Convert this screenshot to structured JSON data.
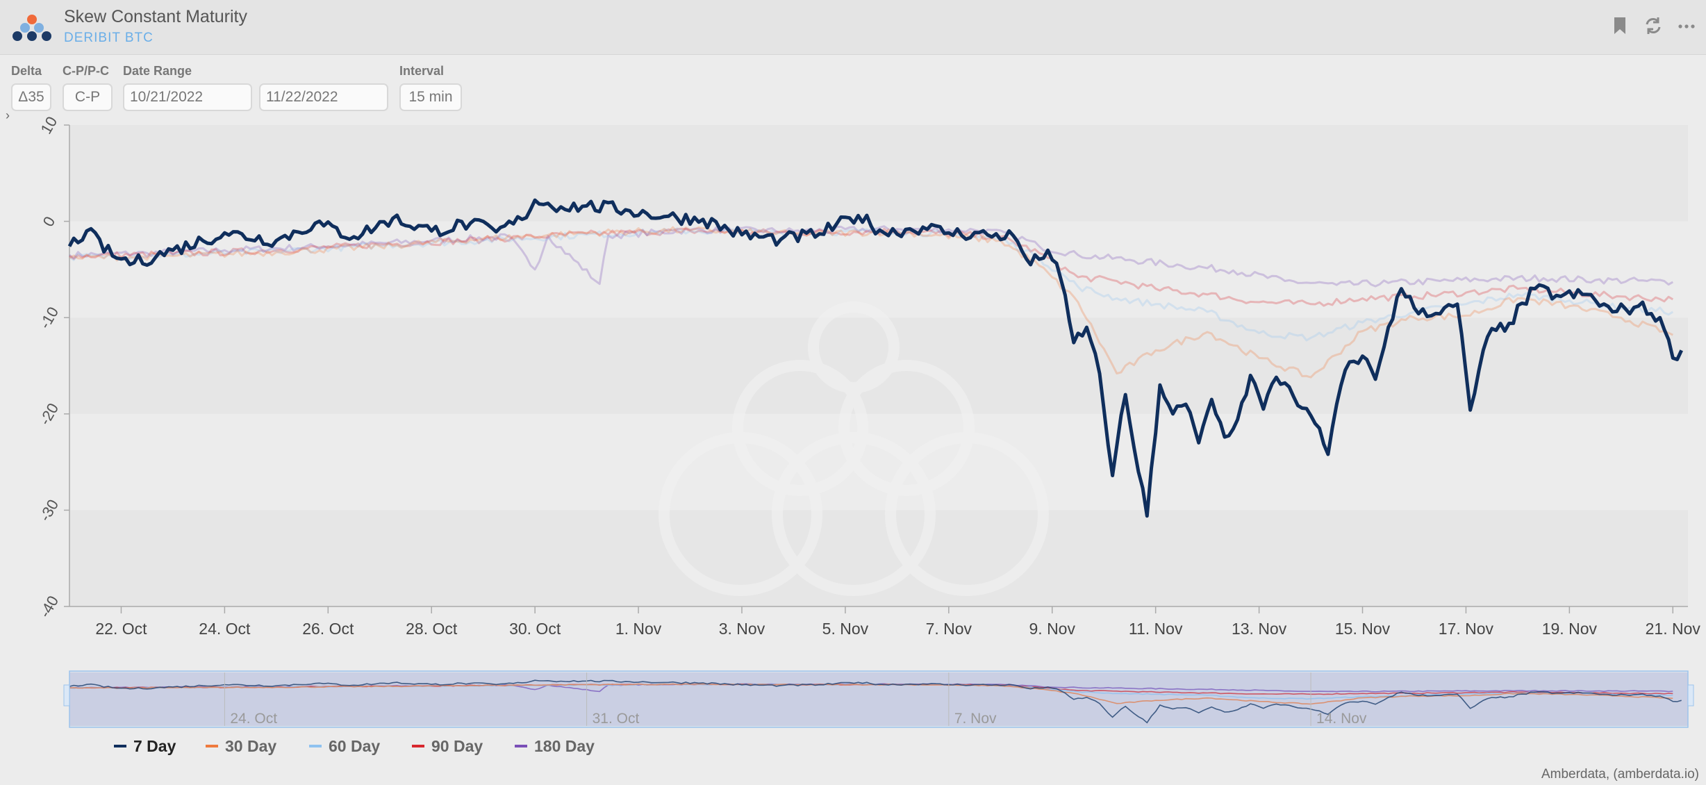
{
  "header": {
    "title": "Skew Constant Maturity",
    "subtitle": "DERIBIT BTC",
    "icons": [
      "bookmark-icon",
      "refresh-icon",
      "more-icon"
    ]
  },
  "controls": {
    "delta": {
      "label": "Delta",
      "value": "Δ35"
    },
    "cp": {
      "label": "C-P/P-C",
      "value": "C-P"
    },
    "date_range": {
      "label": "Date Range",
      "start": "10/21/2022",
      "end": "11/22/2022"
    },
    "interval": {
      "label": "Interval",
      "value": "15 min"
    }
  },
  "credit": "Amberdata, (amberdata.io)",
  "colors": {
    "7_day": "#0f2e5c",
    "30_day": "#ef7a3e",
    "60_day": "#8fc2f0",
    "90_day": "#d8282e",
    "180_day": "#7a4fb7",
    "plot_band": "#e6e6e6",
    "navigator_mask": "#d6d3e2"
  },
  "chart_data": {
    "type": "line",
    "title": "",
    "xlabel": "",
    "ylabel": "",
    "ylim": [
      -40,
      10
    ],
    "yticks": [
      10,
      0,
      -10,
      -20,
      -30,
      -40
    ],
    "xlim": [
      "2022-10-21",
      "2022-11-21"
    ],
    "xticks": [
      {
        "date": "2022-10-22",
        "label": "22. Oct"
      },
      {
        "date": "2022-10-24",
        "label": "24. Oct"
      },
      {
        "date": "2022-10-26",
        "label": "26. Oct"
      },
      {
        "date": "2022-10-28",
        "label": "28. Oct"
      },
      {
        "date": "2022-10-30",
        "label": "30. Oct"
      },
      {
        "date": "2022-11-01",
        "label": "1. Nov"
      },
      {
        "date": "2022-11-03",
        "label": "3. Nov"
      },
      {
        "date": "2022-11-05",
        "label": "5. Nov"
      },
      {
        "date": "2022-11-07",
        "label": "7. Nov"
      },
      {
        "date": "2022-11-09",
        "label": "9. Nov"
      },
      {
        "date": "2022-11-11",
        "label": "11. Nov"
      },
      {
        "date": "2022-11-13",
        "label": "13. Nov"
      },
      {
        "date": "2022-11-15",
        "label": "15. Nov"
      },
      {
        "date": "2022-11-17",
        "label": "17. Nov"
      },
      {
        "date": "2022-11-19",
        "label": "19. Nov"
      },
      {
        "date": "2022-11-21",
        "label": "21. Nov"
      }
    ],
    "navigator_ticks": [
      {
        "date": "2022-10-24",
        "label": "24. Oct"
      },
      {
        "date": "2022-10-31",
        "label": "31. Oct"
      },
      {
        "date": "2022-11-07",
        "label": "7. Nov"
      },
      {
        "date": "2022-11-14",
        "label": "14. Nov"
      }
    ],
    "legend_position": "bottom-left",
    "series": [
      {
        "name": "180 Day",
        "color": "#7a4fb7",
        "points": [
          [
            "2022-10-21T00:00",
            -3.5
          ],
          [
            "2022-10-22T12:00",
            -3.3
          ],
          [
            "2022-10-24T00:00",
            -3.0
          ],
          [
            "2022-10-26T00:00",
            -2.6
          ],
          [
            "2022-10-28T00:00",
            -2.0
          ],
          [
            "2022-10-29T12:00",
            -1.6
          ],
          [
            "2022-10-30T00:00",
            -5.0
          ],
          [
            "2022-10-30T06:00",
            -1.5
          ],
          [
            "2022-10-31T06:00",
            -6.5
          ],
          [
            "2022-10-31T10:00",
            -1.5
          ],
          [
            "2022-11-02T00:00",
            -0.9
          ],
          [
            "2022-11-04T00:00",
            -1.0
          ],
          [
            "2022-11-06T00:00",
            -0.8
          ],
          [
            "2022-11-07T12:00",
            -0.9
          ],
          [
            "2022-11-08T06:00",
            -1.4
          ],
          [
            "2022-11-08T18:00",
            -2.6
          ],
          [
            "2022-11-09T12:00",
            -3.5
          ],
          [
            "2022-11-10T12:00",
            -4.0
          ],
          [
            "2022-11-11T12:00",
            -4.6
          ],
          [
            "2022-11-12T12:00",
            -5.1
          ],
          [
            "2022-11-13T12:00",
            -6.2
          ],
          [
            "2022-11-14T12:00",
            -6.6
          ],
          [
            "2022-11-15T12:00",
            -6.4
          ],
          [
            "2022-11-16T12:00",
            -6.2
          ],
          [
            "2022-11-17T12:00",
            -6.0
          ],
          [
            "2022-11-18T12:00",
            -5.9
          ],
          [
            "2022-11-19T12:00",
            -6.1
          ],
          [
            "2022-11-20T12:00",
            -6.2
          ],
          [
            "2022-11-21T00:00",
            -6.3
          ]
        ]
      },
      {
        "name": "90 Day",
        "color": "#d8282e",
        "points": [
          [
            "2022-10-21T00:00",
            -3.6
          ],
          [
            "2022-10-23T00:00",
            -3.4
          ],
          [
            "2022-10-25T00:00",
            -3.0
          ],
          [
            "2022-10-27T00:00",
            -2.4
          ],
          [
            "2022-10-29T00:00",
            -1.9
          ],
          [
            "2022-10-31T00:00",
            -1.3
          ],
          [
            "2022-11-02T00:00",
            -1.0
          ],
          [
            "2022-11-04T00:00",
            -1.2
          ],
          [
            "2022-11-06T00:00",
            -1.0
          ],
          [
            "2022-11-08T00:00",
            -1.6
          ],
          [
            "2022-11-08T18:00",
            -3.3
          ],
          [
            "2022-11-09T12:00",
            -5.8
          ],
          [
            "2022-11-10T06:00",
            -6.2
          ],
          [
            "2022-11-11T00:00",
            -7.0
          ],
          [
            "2022-11-12T00:00",
            -7.6
          ],
          [
            "2022-11-13T00:00",
            -8.4
          ],
          [
            "2022-11-14T00:00",
            -8.6
          ],
          [
            "2022-11-15T00:00",
            -8.0
          ],
          [
            "2022-11-16T00:00",
            -7.8
          ],
          [
            "2022-11-17T00:00",
            -7.4
          ],
          [
            "2022-11-18T00:00",
            -7.0
          ],
          [
            "2022-11-19T00:00",
            -7.4
          ],
          [
            "2022-11-20T00:00",
            -7.8
          ],
          [
            "2022-11-21T00:00",
            -8.1
          ]
        ]
      },
      {
        "name": "60 Day",
        "color": "#8fc2f0",
        "points": [
          [
            "2022-10-21T00:00",
            -3.7
          ],
          [
            "2022-10-23T00:00",
            -3.5
          ],
          [
            "2022-10-25T00:00",
            -3.1
          ],
          [
            "2022-10-27T00:00",
            -2.5
          ],
          [
            "2022-10-29T00:00",
            -2.0
          ],
          [
            "2022-10-31T00:00",
            -1.4
          ],
          [
            "2022-11-02T00:00",
            -1.0
          ],
          [
            "2022-11-04T00:00",
            -1.2
          ],
          [
            "2022-11-06T00:00",
            -1.0
          ],
          [
            "2022-11-08T00:00",
            -1.8
          ],
          [
            "2022-11-08T18:00",
            -3.8
          ],
          [
            "2022-11-09T12:00",
            -6.8
          ],
          [
            "2022-11-10T06:00",
            -8.0
          ],
          [
            "2022-11-11T00:00",
            -8.6
          ],
          [
            "2022-11-12T00:00",
            -9.4
          ],
          [
            "2022-11-13T00:00",
            -11.6
          ],
          [
            "2022-11-14T00:00",
            -12.1
          ],
          [
            "2022-11-15T00:00",
            -10.5
          ],
          [
            "2022-11-16T00:00",
            -9.4
          ],
          [
            "2022-11-17T00:00",
            -8.6
          ],
          [
            "2022-11-18T00:00",
            -7.6
          ],
          [
            "2022-11-19T00:00",
            -8.2
          ],
          [
            "2022-11-20T00:00",
            -9.0
          ],
          [
            "2022-11-21T00:00",
            -9.4
          ]
        ]
      },
      {
        "name": "30 Day",
        "color": "#ef7a3e",
        "points": [
          [
            "2022-10-21T00:00",
            -3.8
          ],
          [
            "2022-10-23T00:00",
            -3.6
          ],
          [
            "2022-10-25T00:00",
            -3.2
          ],
          [
            "2022-10-27T00:00",
            -2.6
          ],
          [
            "2022-10-29T00:00",
            -1.8
          ],
          [
            "2022-10-31T00:00",
            -1.2
          ],
          [
            "2022-11-02T00:00",
            -0.9
          ],
          [
            "2022-11-04T00:00",
            -1.3
          ],
          [
            "2022-11-06T00:00",
            -1.1
          ],
          [
            "2022-11-08T00:00",
            -2.0
          ],
          [
            "2022-11-08T18:00",
            -4.6
          ],
          [
            "2022-11-09T12:00",
            -8.4
          ],
          [
            "2022-11-10T06:00",
            -15.8
          ],
          [
            "2022-11-11T00:00",
            -13.4
          ],
          [
            "2022-11-12T00:00",
            -11.5
          ],
          [
            "2022-11-13T00:00",
            -14.2
          ],
          [
            "2022-11-14T00:00",
            -16.2
          ],
          [
            "2022-11-15T00:00",
            -11.4
          ],
          [
            "2022-11-16T00:00",
            -10.0
          ],
          [
            "2022-11-17T00:00",
            -9.8
          ],
          [
            "2022-11-18T00:00",
            -8.0
          ],
          [
            "2022-11-19T00:00",
            -8.8
          ],
          [
            "2022-11-20T00:00",
            -10.0
          ],
          [
            "2022-11-21T00:00",
            -11.8
          ]
        ]
      },
      {
        "name": "7 Day",
        "color": "#0f2e5c",
        "points": [
          [
            "2022-10-21T00:00",
            -2.6
          ],
          [
            "2022-10-21T08:00",
            -1.0
          ],
          [
            "2022-10-21T20:00",
            -3.6
          ],
          [
            "2022-10-22T06:00",
            -4.3
          ],
          [
            "2022-10-23T00:00",
            -3.0
          ],
          [
            "2022-10-24T00:00",
            -1.2
          ],
          [
            "2022-10-25T00:00",
            -2.0
          ],
          [
            "2022-10-25T18:00",
            -0.2
          ],
          [
            "2022-10-26T12:00",
            -1.6
          ],
          [
            "2022-10-27T06:00",
            0.3
          ],
          [
            "2022-10-28T00:00",
            -1.0
          ],
          [
            "2022-10-28T18:00",
            -0.2
          ],
          [
            "2022-10-29T06:00",
            -1.1
          ],
          [
            "2022-10-29T18:00",
            0.2
          ],
          [
            "2022-10-30T00:00",
            2.2
          ],
          [
            "2022-10-30T12:00",
            1.5
          ],
          [
            "2022-10-31T00:00",
            1.6
          ],
          [
            "2022-10-31T18:00",
            1.2
          ],
          [
            "2022-11-01T12:00",
            0.5
          ],
          [
            "2022-11-02T06:00",
            0.2
          ],
          [
            "2022-11-03T00:00",
            -1.4
          ],
          [
            "2022-11-03T18:00",
            -1.9
          ],
          [
            "2022-11-04T12:00",
            -1.3
          ],
          [
            "2022-11-05T06:00",
            0.6
          ],
          [
            "2022-11-05T18:00",
            -1.2
          ],
          [
            "2022-11-06T12:00",
            -0.6
          ],
          [
            "2022-11-07T00:00",
            -1.2
          ],
          [
            "2022-11-07T18:00",
            -1.4
          ],
          [
            "2022-11-08T06:00",
            -1.5
          ],
          [
            "2022-11-08T14:00",
            -4.5
          ],
          [
            "2022-11-08T22:00",
            -3.0
          ],
          [
            "2022-11-09T04:00",
            -6.0
          ],
          [
            "2022-11-09T10:00",
            -12.6
          ],
          [
            "2022-11-09T16:00",
            -11.0
          ],
          [
            "2022-11-09T22:00",
            -15.8
          ],
          [
            "2022-11-10T04:00",
            -26.4
          ],
          [
            "2022-11-10T10:00",
            -18.0
          ],
          [
            "2022-11-10T16:00",
            -26.0
          ],
          [
            "2022-11-10T20:00",
            -30.6
          ],
          [
            "2022-11-11T02:00",
            -17.0
          ],
          [
            "2022-11-11T08:00",
            -20.0
          ],
          [
            "2022-11-11T14:00",
            -19.0
          ],
          [
            "2022-11-11T20:00",
            -23.0
          ],
          [
            "2022-11-12T02:00",
            -18.5
          ],
          [
            "2022-11-12T08:00",
            -22.4
          ],
          [
            "2022-11-12T14:00",
            -20.6
          ],
          [
            "2022-11-12T20:00",
            -16.0
          ],
          [
            "2022-11-13T02:00",
            -19.5
          ],
          [
            "2022-11-13T08:00",
            -16.2
          ],
          [
            "2022-11-13T14:00",
            -17.2
          ],
          [
            "2022-11-13T20:00",
            -19.4
          ],
          [
            "2022-11-14T02:00",
            -21.0
          ],
          [
            "2022-11-14T08:00",
            -24.2
          ],
          [
            "2022-11-14T12:00",
            -19.0
          ],
          [
            "2022-11-14T18:00",
            -14.6
          ],
          [
            "2022-11-15T00:00",
            -14.0
          ],
          [
            "2022-11-15T06:00",
            -16.4
          ],
          [
            "2022-11-15T12:00",
            -11.0
          ],
          [
            "2022-11-15T18:00",
            -7.0
          ],
          [
            "2022-11-16T00:00",
            -9.0
          ],
          [
            "2022-11-16T12:00",
            -9.6
          ],
          [
            "2022-11-16T20:00",
            -8.6
          ],
          [
            "2022-11-17T02:00",
            -19.6
          ],
          [
            "2022-11-17T10:00",
            -12.0
          ],
          [
            "2022-11-17T20:00",
            -10.6
          ],
          [
            "2022-11-18T08:00",
            -7.0
          ],
          [
            "2022-11-18T20:00",
            -7.8
          ],
          [
            "2022-11-19T08:00",
            -7.6
          ],
          [
            "2022-11-19T20:00",
            -9.4
          ],
          [
            "2022-11-20T08:00",
            -8.8
          ],
          [
            "2022-11-20T18:00",
            -10.0
          ],
          [
            "2022-11-21T00:00",
            -14.2
          ],
          [
            "2022-11-21T04:00",
            -13.4
          ]
        ]
      }
    ]
  }
}
